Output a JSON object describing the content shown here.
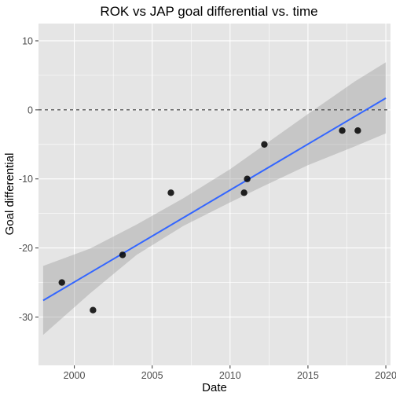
{
  "chart_data": {
    "type": "scatter",
    "title": "ROK vs JAP goal differential vs. time",
    "xlabel": "Date",
    "ylabel": "Goal differential",
    "xlim": [
      1997.7,
      2020.3
    ],
    "ylim": [
      -37,
      12.5
    ],
    "x_ticks": [
      {
        "value": 2000,
        "label": "2000"
      },
      {
        "value": 2005,
        "label": "2005"
      },
      {
        "value": 2010,
        "label": "2010"
      },
      {
        "value": 2015,
        "label": "2015"
      },
      {
        "value": 2020,
        "label": "2020"
      }
    ],
    "y_ticks": [
      {
        "value": 10,
        "label": "10"
      },
      {
        "value": 0,
        "label": "0"
      },
      {
        "value": -10,
        "label": "-10"
      },
      {
        "value": -20,
        "label": "-20"
      },
      {
        "value": -30,
        "label": "-30"
      }
    ],
    "points": [
      {
        "x": 1999.2,
        "y": -25
      },
      {
        "x": 2001.2,
        "y": -29
      },
      {
        "x": 2003.1,
        "y": -21
      },
      {
        "x": 2006.2,
        "y": -12
      },
      {
        "x": 2010.9,
        "y": -12
      },
      {
        "x": 2011.1,
        "y": -10
      },
      {
        "x": 2012.2,
        "y": -5
      },
      {
        "x": 2017.2,
        "y": -3
      },
      {
        "x": 2018.2,
        "y": -3
      }
    ],
    "trend_line": {
      "x": [
        1998,
        2020
      ],
      "y": [
        -27.6,
        1.7
      ]
    },
    "confidence_band": {
      "x": [
        1998,
        2001,
        2004,
        2007,
        2010,
        2012,
        2015,
        2018,
        2020
      ],
      "upper": [
        -22.6,
        -20.1,
        -16.6,
        -12.8,
        -8.6,
        -5.4,
        -0.6,
        4.1,
        6.9
      ],
      "lower": [
        -32.6,
        -26.6,
        -21.0,
        -16.8,
        -13.4,
        -11.2,
        -8.0,
        -5.3,
        -3.4
      ]
    },
    "reference_line": {
      "y": 0,
      "style": "dashed"
    },
    "grid": true,
    "colors": {
      "panel": "#e5e5e5",
      "grid": "#ffffff",
      "points": "#000000",
      "trend": "#3366ff",
      "band": "#999999"
    }
  }
}
